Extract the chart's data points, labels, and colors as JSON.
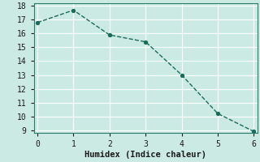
{
  "x": [
    0,
    1,
    2,
    3,
    4,
    5,
    6
  ],
  "y": [
    16.8,
    17.7,
    15.9,
    15.4,
    13.0,
    10.2,
    8.9
  ],
  "xlabel": "Humidex (Indice chaleur)",
  "xlim": [
    -0.1,
    6.1
  ],
  "ylim": [
    8.8,
    18.2
  ],
  "yticks": [
    9,
    10,
    11,
    12,
    13,
    14,
    15,
    16,
    17,
    18
  ],
  "xticks": [
    0,
    1,
    2,
    3,
    4,
    5,
    6
  ],
  "line_color": "#1a6b5a",
  "marker_color": "#1a6b5a",
  "bg_color": "#cceae4",
  "grid_color": "#ffffff",
  "xlabel_fontsize": 7.5,
  "tick_fontsize": 7
}
